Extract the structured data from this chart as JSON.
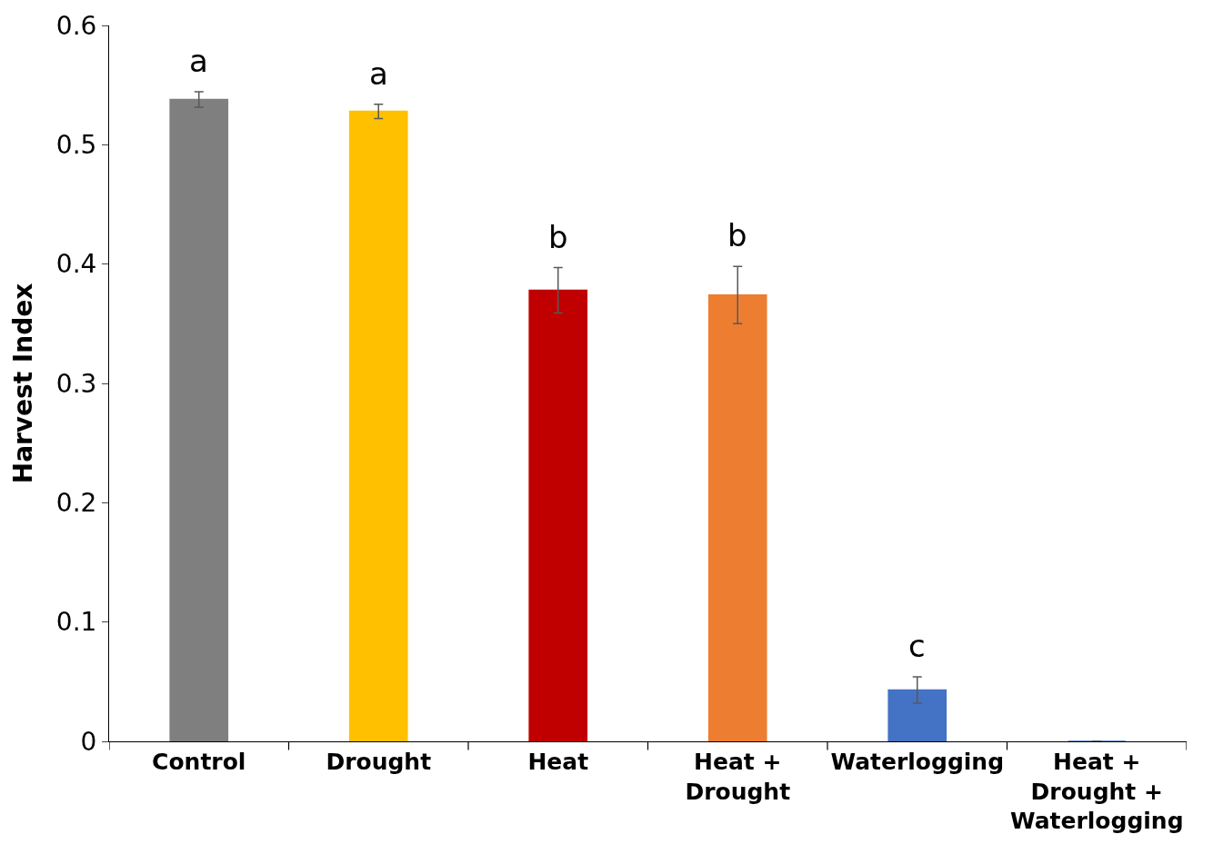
{
  "chart_data": {
    "type": "bar",
    "ylabel": "Harvest Index",
    "categories": [
      "Control",
      "Drought",
      "Heat",
      "Heat + Drought",
      "Waterlogging",
      "Heat + Drought + Waterlogging"
    ],
    "values": [
      0.538,
      0.528,
      0.378,
      0.374,
      0.043,
      0.0
    ],
    "errors": [
      0.0065,
      0.006,
      0.019,
      0.024,
      0.011,
      null
    ],
    "colors": [
      "#7f7f7f",
      "#ffc000",
      "#c00000",
      "#ed7d31",
      "#4472c4",
      "#4472c4"
    ],
    "ylim": [
      0,
      0.6
    ],
    "yticks": [
      0,
      0.1,
      0.2,
      0.3,
      0.4,
      0.5,
      0.6
    ],
    "annotations": [
      "a",
      "a",
      "b",
      "b",
      "c"
    ]
  }
}
